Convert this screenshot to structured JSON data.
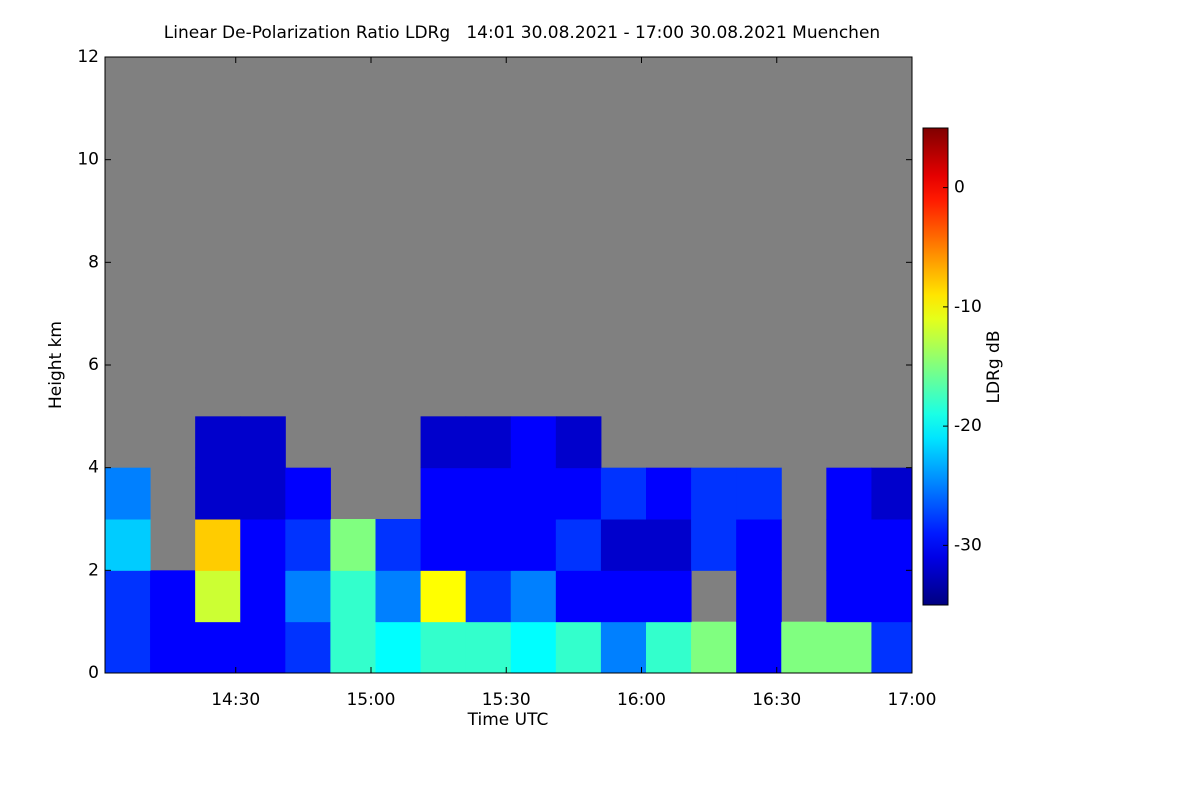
{
  "chart_data": {
    "type": "heatmap",
    "title": "Linear De-Polarization Ratio LDRg   14:01 30.08.2021 - 17:00 30.08.2021 Muenchen",
    "xlabel": "Time UTC",
    "ylabel": "Height km",
    "colorbar_label": "LDRg dB",
    "colormap": "jet",
    "background": "#808080",
    "x": [
      14.0167,
      14.1833,
      14.35,
      14.5167,
      14.6833,
      14.85,
      15.0167,
      15.1833,
      15.35,
      15.5167,
      15.6833,
      15.85,
      16.0167,
      16.1833,
      16.35,
      16.5167,
      16.6833,
      16.85,
      17.0
    ],
    "y": [
      0,
      1,
      2,
      3,
      4,
      5
    ],
    "z": [
      [
        -28,
        -30,
        -30,
        -30,
        -28,
        -18,
        -20,
        -18,
        -18,
        -20,
        -18,
        -25,
        -18,
        -15,
        -30,
        -15,
        -15,
        -28
      ],
      [
        -28,
        -30,
        -12,
        -30,
        -25,
        -18,
        -25,
        -10,
        -28,
        -25,
        -30,
        -30,
        -30,
        null,
        -30,
        null,
        -30,
        -30
      ],
      [
        -22,
        null,
        -8,
        -30,
        -28,
        -15,
        -28,
        -30,
        -30,
        -30,
        -28,
        -32,
        -32,
        -28,
        -30,
        null,
        -30,
        -30
      ],
      [
        -25,
        null,
        -32,
        -32,
        -30,
        null,
        null,
        -30,
        -30,
        -30,
        -30,
        -28,
        -30,
        -28,
        -28,
        null,
        -30,
        -32
      ],
      [
        null,
        null,
        -32,
        -32,
        null,
        null,
        null,
        -32,
        -32,
        -30,
        -32,
        null,
        null,
        null,
        null,
        null,
        null,
        null
      ]
    ],
    "xlim": [
      14.0167,
      17.0
    ],
    "xticks": [
      {
        "value": 14.5,
        "label": "14:30"
      },
      {
        "value": 15.0,
        "label": "15:00"
      },
      {
        "value": 15.5,
        "label": "15:30"
      },
      {
        "value": 16.0,
        "label": "16:00"
      },
      {
        "value": 16.5,
        "label": "16:30"
      },
      {
        "value": 17.0,
        "label": "17:00"
      }
    ],
    "ylim": [
      0,
      12
    ],
    "yticks": [
      0,
      2,
      4,
      6,
      8,
      10,
      12
    ],
    "zlim": [
      -35,
      5
    ],
    "zticks": [
      0,
      -10,
      -20,
      -30
    ]
  }
}
